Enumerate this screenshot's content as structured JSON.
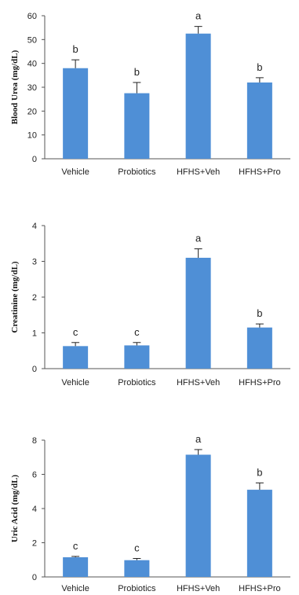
{
  "chart_data": [
    {
      "type": "bar",
      "categories": [
        "Vehicle",
        "Probiotics",
        "HFHS+Veh",
        "HFHS+Pro"
      ],
      "values": [
        38,
        27.5,
        52.5,
        32
      ],
      "errors": [
        3.5,
        4.5,
        3.0,
        2.0
      ],
      "significance": [
        "b",
        "b",
        "a",
        "b"
      ],
      "ylabel": "Blood Urea (mg/dL)",
      "ylim": [
        0,
        60
      ],
      "yticks": [
        0,
        10,
        20,
        30,
        40,
        50,
        60
      ],
      "color": "#4f8fd6"
    },
    {
      "type": "bar",
      "categories": [
        "Vehicle",
        "Probiotics",
        "HFHS+Veh",
        "HFHS+Pro"
      ],
      "values": [
        0.63,
        0.65,
        3.1,
        1.15
      ],
      "errors": [
        0.1,
        0.08,
        0.25,
        0.1
      ],
      "significance": [
        "c",
        "c",
        "a",
        "b"
      ],
      "ylabel": "Creatinine (mg/dL)",
      "ylim": [
        0,
        4
      ],
      "yticks": [
        0,
        1,
        2,
        3,
        4
      ],
      "color": "#4f8fd6"
    },
    {
      "type": "bar",
      "categories": [
        "Vehicle",
        "Probiotics",
        "HFHS+Veh",
        "HFHS+Pro"
      ],
      "values": [
        1.15,
        0.98,
        7.15,
        5.1
      ],
      "errors": [
        0.05,
        0.1,
        0.3,
        0.4
      ],
      "significance": [
        "c",
        "c",
        "a",
        "b"
      ],
      "ylabel": "Uric Acid (mg/dL)",
      "ylim": [
        0,
        8
      ],
      "yticks": [
        0,
        2,
        4,
        6,
        8
      ],
      "color": "#4f8fd6"
    }
  ]
}
